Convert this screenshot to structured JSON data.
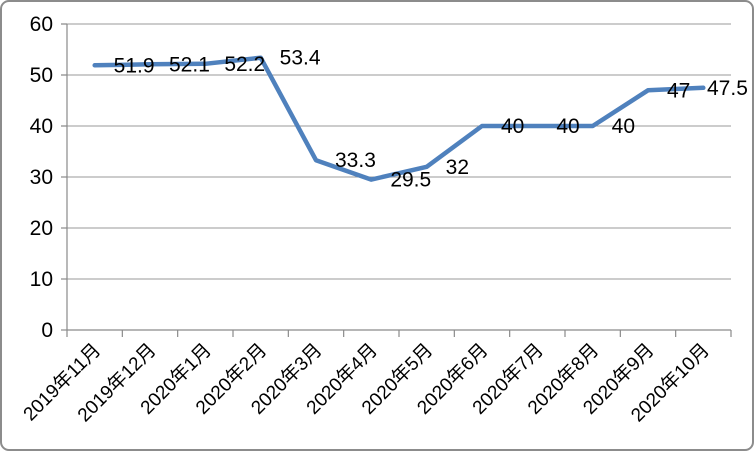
{
  "chart_data": {
    "type": "line",
    "title": "",
    "categories": [
      "2019年11月",
      "2019年12月",
      "2020年1月",
      "2020年2月",
      "2020年3月",
      "2020年4月",
      "2020年5月",
      "2020年6月",
      "2020年7月",
      "2020年8月",
      "2020年9月",
      "2020年10月"
    ],
    "series": [
      {
        "name": "",
        "values": [
          51.9,
          52.1,
          52.2,
          53.4,
          33.3,
          29.5,
          32,
          40,
          40,
          40,
          47,
          47.5
        ]
      }
    ],
    "data_labels": [
      "51.9",
      "52.1",
      "52.2",
      "53.4",
      "33.3",
      "29.5",
      "32",
      "40",
      "40",
      "40",
      "47",
      "47.5"
    ],
    "y_tick_labels": [
      "0",
      "10",
      "20",
      "30",
      "40",
      "50",
      "60"
    ],
    "ylim": [
      0,
      60
    ],
    "ytick_step": 10,
    "xlabel": "",
    "ylabel": "",
    "grid": true,
    "legend_position": "none",
    "colors": {
      "line": "#4F81BD",
      "text": "#000000",
      "axis": "#8a8a8a",
      "grid": "#989898",
      "frame_border": "#8c8c8c",
      "background": "#FFFFFF"
    }
  }
}
